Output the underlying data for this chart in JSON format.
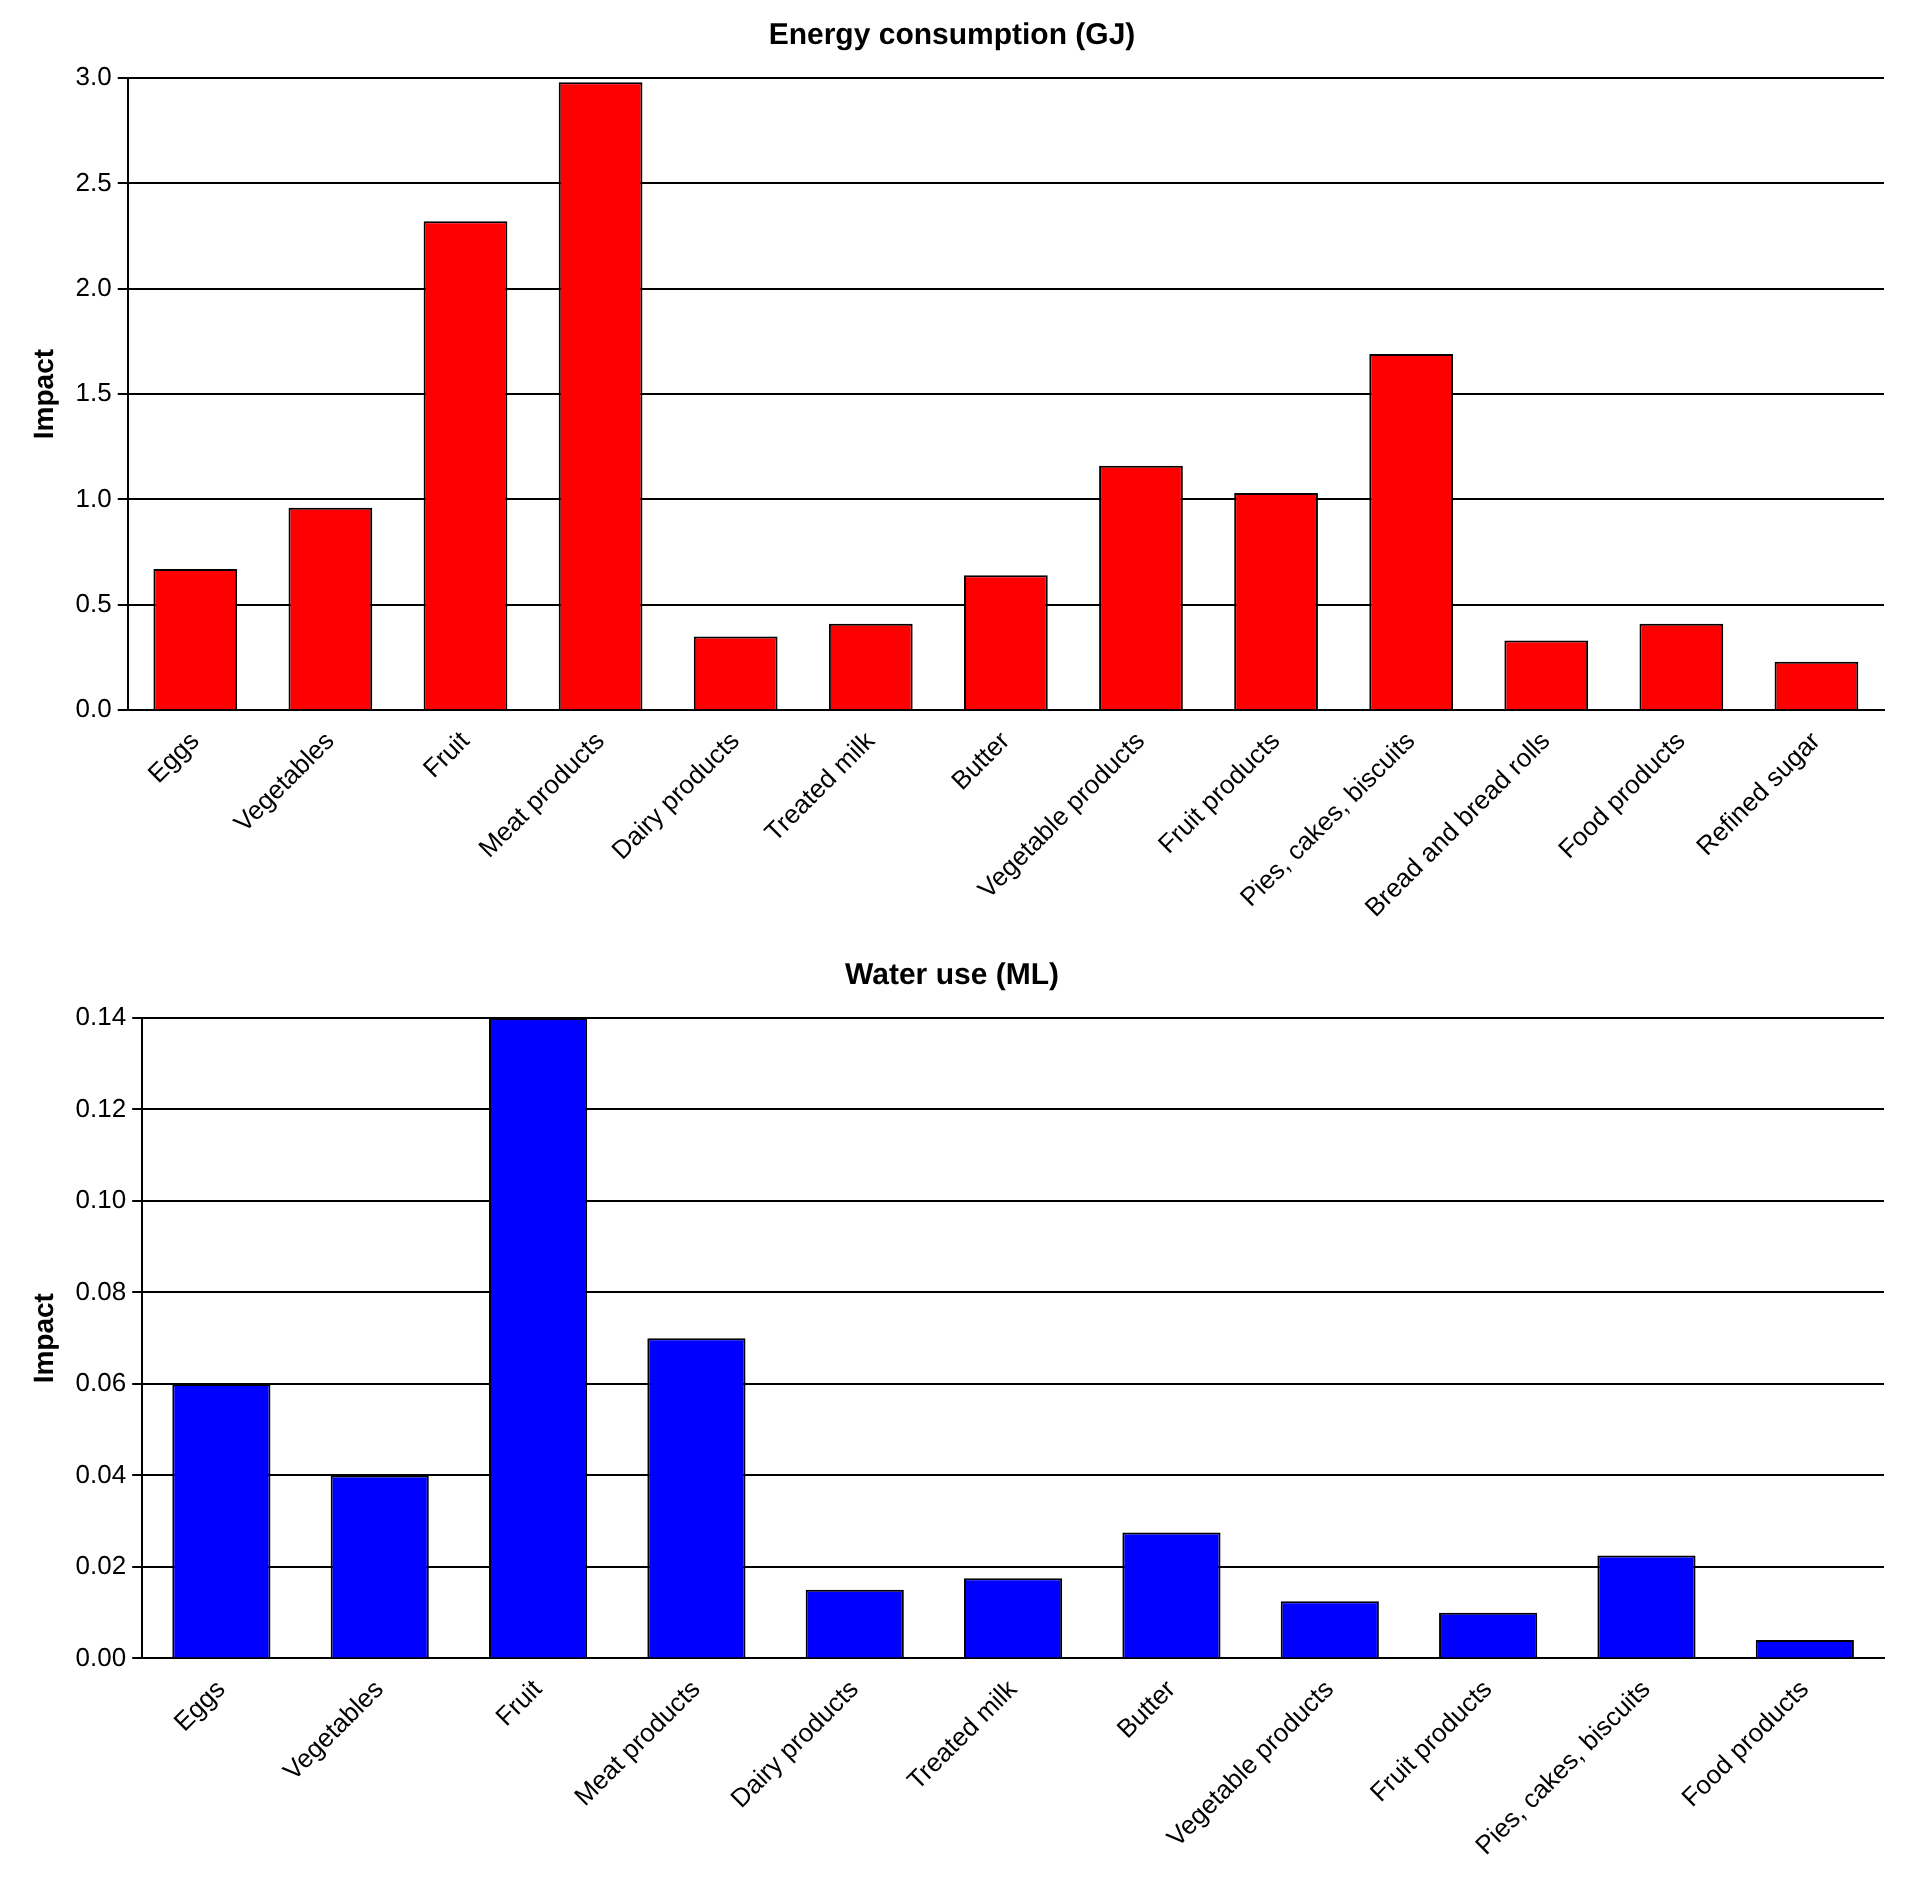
{
  "chart_data": [
    {
      "type": "bar",
      "title": "Energy consumption (GJ)",
      "ylabel": "Impact",
      "categories": [
        "Eggs",
        "Vegetables",
        "Fruit",
        "Meat products",
        "Dairy products",
        "Treated milk",
        "Butter",
        "Vegetable products",
        "Fruit products",
        "Pies, cakes, biscuits",
        "Bread and bread rolls",
        "Food products",
        "Refined sugar"
      ],
      "series": [
        {
          "color": "#ff0000",
          "values": [
            0.67,
            0.96,
            2.32,
            2.98,
            0.35,
            0.41,
            0.64,
            1.16,
            1.03,
            1.69,
            0.33,
            0.41,
            0.23
          ]
        }
      ],
      "ylim": [
        0,
        3
      ],
      "yticks": [
        {
          "value": 0,
          "label": "0.0"
        },
        0.5,
        {
          "value": 1,
          "label": "1.0"
        },
        1.5,
        {
          "value": 2,
          "label": "2.0"
        },
        2.5,
        {
          "value": 3,
          "label": "3.0"
        }
      ],
      "grid": "y",
      "legend": false
    },
    {
      "type": "bar",
      "title": "Water use (ML)",
      "ylabel": "Impact",
      "categories": [
        "Eggs",
        "Vegetables",
        "Fruit",
        "Meat products",
        "Dairy products",
        "Treated milk",
        "Butter",
        "Vegetable products",
        "Fruit products",
        "Pies, cakes, biscuits",
        "Food products"
      ],
      "series": [
        {
          "color": "#0000ff",
          "values": [
            0.06,
            0.04,
            0.14,
            0.07,
            0.015,
            0.0175,
            0.0275,
            0.0125,
            0.01,
            0.0225,
            0.004
          ]
        }
      ],
      "ylim": [
        0,
        0.14
      ],
      "yticks": [
        {
          "value": 0,
          "label": "0.00"
        },
        {
          "value": 0.02,
          "label": "0.02"
        },
        {
          "value": 0.04,
          "label": "0.04"
        },
        {
          "value": 0.06,
          "label": "0.06"
        },
        {
          "value": 0.08,
          "label": "0.08"
        },
        {
          "value": 0.1,
          "label": "0.10"
        },
        {
          "value": 0.12,
          "label": "0.12"
        },
        {
          "value": 0.14,
          "label": "0.14"
        }
      ],
      "grid": "y",
      "legend": false
    }
  ]
}
